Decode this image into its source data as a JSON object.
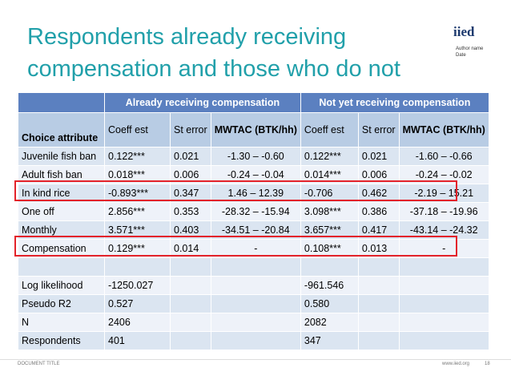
{
  "header": {
    "title": "Respondents already receiving compensation and those who do not",
    "logo": "iied",
    "author": "Author name",
    "date": "Date"
  },
  "table": {
    "group_headers": [
      "Already receiving compensation",
      "Not yet receiving compensation"
    ],
    "columns": [
      "Choice attribute",
      "Coeff est",
      "St error",
      "MWTAC (BTK/hh)",
      "Coeff est",
      "St error",
      "MWTAC (BTK/hh)"
    ],
    "rows": [
      [
        "Juvenile fish ban",
        "0.122***",
        "0.021",
        "-1.30 – -0.60",
        "0.122***",
        "0.021",
        "-1.60 – -0.66"
      ],
      [
        "Adult fish ban",
        "0.018***",
        "0.006",
        "-0.24 – -0.04",
        "0.014***",
        "0.006",
        "-0.24 – -0.02"
      ],
      [
        "In kind rice",
        "-0.893***",
        "0.347",
        "1.46 – 12.39",
        "-0.706",
        "0.462",
        "-2.19 – 15.21"
      ],
      [
        "One off",
        "2.856***",
        "0.353",
        "-28.32 – -15.94",
        "3.098***",
        "0.386",
        "-37.18 – -19.96"
      ],
      [
        "Monthly",
        "3.571***",
        "0.403",
        "-34.51 – -20.84",
        "3.657***",
        "0.417",
        "-43.14 – -24.32"
      ],
      [
        "Compensation",
        "0.129***",
        "0.014",
        "-",
        "0.108***",
        "0.013",
        "-"
      ]
    ],
    "summary_rows": [
      [
        "Log likelihood",
        "-1250.027",
        null,
        null,
        "-961.546",
        null,
        null
      ],
      [
        "Pseudo R2",
        "0.527",
        null,
        null,
        "0.580",
        null,
        null
      ],
      [
        "N",
        "2406",
        null,
        null,
        "2082",
        null,
        null
      ],
      [
        "Respondents",
        "401",
        null,
        null,
        "347",
        null,
        null
      ]
    ]
  },
  "footer": {
    "document_title": "DOCUMENT TITLE",
    "url": "www.iied.org",
    "page": "18"
  }
}
